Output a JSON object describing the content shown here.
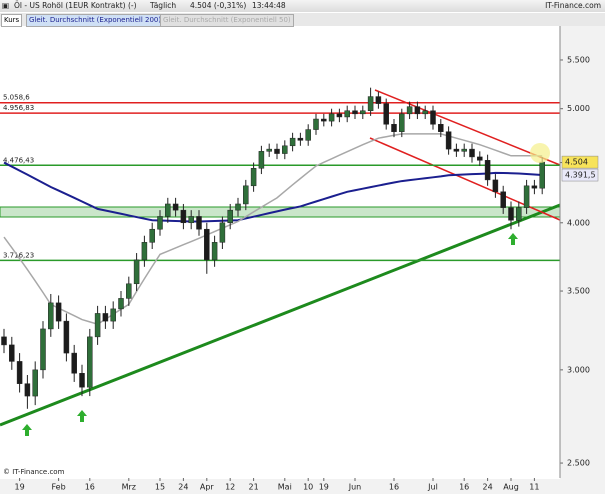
{
  "header": {
    "title": "Öl - US Rohöl (1EUR Kontrakt) (-)",
    "interval": "Täglich",
    "price": "4.504 (-0,31%)",
    "time": "13:44:48",
    "brand": "IT-Finance.com"
  },
  "chart_data": {
    "type": "candlestick",
    "price_label": "Kurs",
    "copyright": "© IT-Finance.com",
    "categories": [
      null,
      null,
      "19",
      null,
      null,
      null,
      null,
      "Feb",
      null,
      null,
      null,
      "16",
      null,
      null,
      null,
      null,
      "Mrz",
      null,
      null,
      null,
      "15",
      null,
      null,
      "24",
      null,
      null,
      "Apr",
      null,
      null,
      "12",
      null,
      null,
      "21",
      null,
      null,
      null,
      "Mai",
      null,
      null,
      "10",
      null,
      "19",
      null,
      null,
      null,
      "Jun",
      null,
      null,
      null,
      null,
      "16",
      null,
      null,
      null,
      null,
      "Jul",
      null,
      null,
      null,
      "16",
      null,
      null,
      "24",
      null,
      null,
      "Aug",
      null,
      null,
      "11",
      null
    ],
    "open": [
      3200,
      3150,
      3050,
      2920,
      2850,
      3000,
      3250,
      3420,
      3300,
      3100,
      2980,
      2900,
      3200,
      3350,
      3300,
      3380,
      3450,
      3550,
      3720,
      3850,
      3950,
      4050,
      4150,
      4100,
      4000,
      4050,
      3950,
      3720,
      3850,
      4000,
      4100,
      4150,
      4300,
      4450,
      4600,
      4620,
      4580,
      4650,
      4720,
      4700,
      4800,
      4900,
      4880,
      4950,
      4920,
      4980,
      4950,
      4980,
      5120,
      5050,
      4850,
      4780,
      4950,
      5020,
      4950,
      4980,
      4850,
      4780,
      4620,
      4600,
      4620,
      4550,
      4520,
      4350,
      4250,
      4120,
      4020,
      4120,
      4300,
      4280
    ],
    "high": [
      3250,
      3200,
      3100,
      2970,
      3050,
      3300,
      3480,
      3470,
      3350,
      3150,
      3030,
      3250,
      3400,
      3400,
      3430,
      3500,
      3600,
      3770,
      3900,
      4000,
      4100,
      4200,
      4200,
      4150,
      4100,
      4100,
      4000,
      3900,
      4050,
      4150,
      4200,
      4350,
      4500,
      4650,
      4670,
      4670,
      4700,
      4770,
      4770,
      4850,
      4950,
      4950,
      5000,
      5000,
      5030,
      5030,
      5030,
      5210,
      5170,
      5100,
      4900,
      5000,
      5070,
      5070,
      5030,
      5030,
      4900,
      4830,
      4670,
      4670,
      4670,
      4600,
      4570,
      4400,
      4300,
      4170,
      4170,
      4350,
      4350,
      4550
    ],
    "low": [
      3100,
      3000,
      2870,
      2780,
      2800,
      2950,
      3200,
      3250,
      3050,
      2930,
      2850,
      2850,
      3150,
      3250,
      3250,
      3330,
      3400,
      3500,
      3670,
      3800,
      3900,
      4000,
      4050,
      3950,
      3950,
      3900,
      3620,
      3670,
      3800,
      3950,
      4050,
      4100,
      4250,
      4400,
      4550,
      4530,
      4530,
      4600,
      4650,
      4650,
      4750,
      4830,
      4830,
      4870,
      4870,
      4900,
      4900,
      4930,
      5000,
      4800,
      4730,
      4730,
      4900,
      4900,
      4900,
      4800,
      4730,
      4570,
      4550,
      4550,
      4500,
      4470,
      4300,
      4200,
      4070,
      3950,
      3970,
      4070,
      4230,
      4230
    ],
    "close": [
      3150,
      3050,
      2920,
      2850,
      3000,
      3250,
      3420,
      3300,
      3100,
      2980,
      2900,
      3200,
      3350,
      3300,
      3380,
      3450,
      3550,
      3720,
      3850,
      3950,
      4050,
      4150,
      4100,
      4000,
      4050,
      3950,
      3720,
      3850,
      4000,
      4100,
      4150,
      4300,
      4450,
      4600,
      4620,
      4580,
      4650,
      4720,
      4700,
      4800,
      4900,
      4880,
      4950,
      4920,
      4980,
      4950,
      4980,
      5120,
      5050,
      4850,
      4780,
      4950,
      5020,
      4950,
      4980,
      4850,
      4780,
      4620,
      4600,
      4620,
      4550,
      4520,
      4350,
      4250,
      4120,
      4020,
      4120,
      4300,
      4280,
      4504
    ],
    "colors": {
      "up": "#2f6f3a",
      "down": "#1c1c1c"
    },
    "series": [
      {
        "name": "Gleit. Durchschnitt (Exponentiell 200)",
        "color": "#1b1f8f",
        "values": [
          4500,
          4465,
          4430,
          4395,
          4360,
          4325,
          4290,
          4260,
          4230,
          4200,
          4170,
          4140,
          4110,
          4097,
          4084,
          4071,
          4058,
          4045,
          4032,
          4020,
          4018,
          4016,
          4014,
          4012,
          4010,
          4010,
          4012,
          4014,
          4016,
          4018,
          4020,
          4034,
          4048,
          4062,
          4076,
          4090,
          4104,
          4117,
          4130,
          4150,
          4170,
          4190,
          4210,
          4230,
          4250,
          4263,
          4276,
          4289,
          4302,
          4315,
          4328,
          4340,
          4348,
          4356,
          4364,
          4372,
          4380,
          4390,
          4393,
          4396,
          4399,
          4402,
          4405,
          4410,
          4409,
          4407,
          4405,
          4400,
          4396,
          4392
        ]
      },
      {
        "name": "Gleit. Durchschnitt (Exponentiell 50)",
        "color": "#a8a8a8",
        "values": [
          3890,
          3810,
          3730,
          3650,
          3570,
          3490,
          3410,
          3385,
          3360,
          3335,
          3310,
          3295,
          3280,
          3312,
          3345,
          3378,
          3410,
          3498,
          3585,
          3673,
          3760,
          3784,
          3808,
          3832,
          3856,
          3880,
          3906,
          3932,
          3958,
          3984,
          4010,
          4048,
          4086,
          4124,
          4162,
          4200,
          4254,
          4308,
          4362,
          4416,
          4470,
          4502,
          4533,
          4565,
          4597,
          4628,
          4660,
          4690,
          4720,
          4733,
          4747,
          4760,
          4760,
          4760,
          4760,
          4760,
          4760,
          4740,
          4720,
          4700,
          4680,
          4660,
          4635,
          4610,
          4585,
          4560,
          4560,
          4560,
          4560,
          4560
        ]
      }
    ],
    "log_scale": true,
    "ylim": [
      2428,
      5855
    ],
    "yticks": [
      {
        "value": 2500,
        "label": "2.500"
      },
      {
        "value": 3000,
        "label": "3.000"
      },
      {
        "value": 3500,
        "label": "3.500"
      },
      {
        "value": 4000,
        "label": "4.000"
      },
      {
        "value": 4500,
        "label": "4.500"
      },
      {
        "value": 5000,
        "label": "5.000"
      },
      {
        "value": 5500,
        "label": "5.500"
      }
    ],
    "levels": [
      {
        "value": 5058.6,
        "label": "5.058,6",
        "color": "#e02020"
      },
      {
        "value": 4956.83,
        "label": "4.956,83",
        "color": "#e02020"
      },
      {
        "value": 4476.43,
        "label": "4.476,43",
        "color": "#2a9a2a"
      },
      {
        "value": 3716.23,
        "label": "3.716,23",
        "color": "#2a9a2a"
      }
    ],
    "last_price": {
      "value": 4504,
      "label": "4.504"
    },
    "ma_last": {
      "value": 4391.5,
      "label": "4.391,5"
    }
  }
}
